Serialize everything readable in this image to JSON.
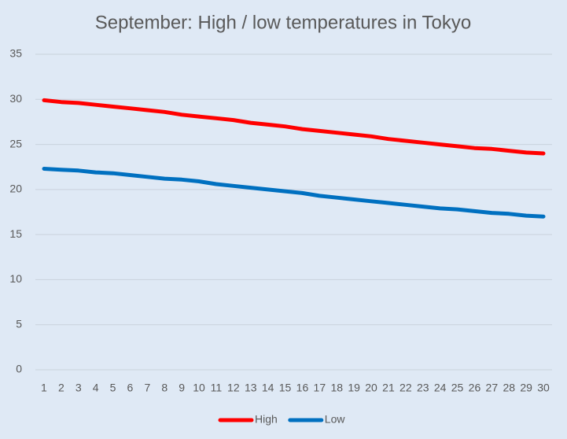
{
  "chart_data": {
    "type": "line",
    "title": "September: High / low temperatures in Tokyo",
    "categories": [
      "1",
      "2",
      "3",
      "4",
      "5",
      "6",
      "7",
      "8",
      "9",
      "10",
      "11",
      "12",
      "13",
      "14",
      "15",
      "16",
      "17",
      "18",
      "19",
      "20",
      "21",
      "22",
      "23",
      "24",
      "25",
      "26",
      "27",
      "28",
      "29",
      "30"
    ],
    "series": [
      {
        "name": "High",
        "color": "#ff0000",
        "values": [
          29.9,
          29.7,
          29.6,
          29.4,
          29.2,
          29.0,
          28.8,
          28.6,
          28.3,
          28.1,
          27.9,
          27.7,
          27.4,
          27.2,
          27.0,
          26.7,
          26.5,
          26.3,
          26.1,
          25.9,
          25.6,
          25.4,
          25.2,
          25.0,
          24.8,
          24.6,
          24.5,
          24.3,
          24.1,
          24.0
        ]
      },
      {
        "name": "Low",
        "color": "#0070c0",
        "values": [
          22.3,
          22.2,
          22.1,
          21.9,
          21.8,
          21.6,
          21.4,
          21.2,
          21.1,
          20.9,
          20.6,
          20.4,
          20.2,
          20.0,
          19.8,
          19.6,
          19.3,
          19.1,
          18.9,
          18.7,
          18.5,
          18.3,
          18.1,
          17.9,
          17.8,
          17.6,
          17.4,
          17.3,
          17.1,
          17.0
        ]
      }
    ],
    "ylim": [
      0,
      35
    ],
    "yticks": [
      0,
      5,
      10,
      15,
      20,
      25,
      30,
      35
    ],
    "grid": true,
    "legend": "bottom"
  }
}
